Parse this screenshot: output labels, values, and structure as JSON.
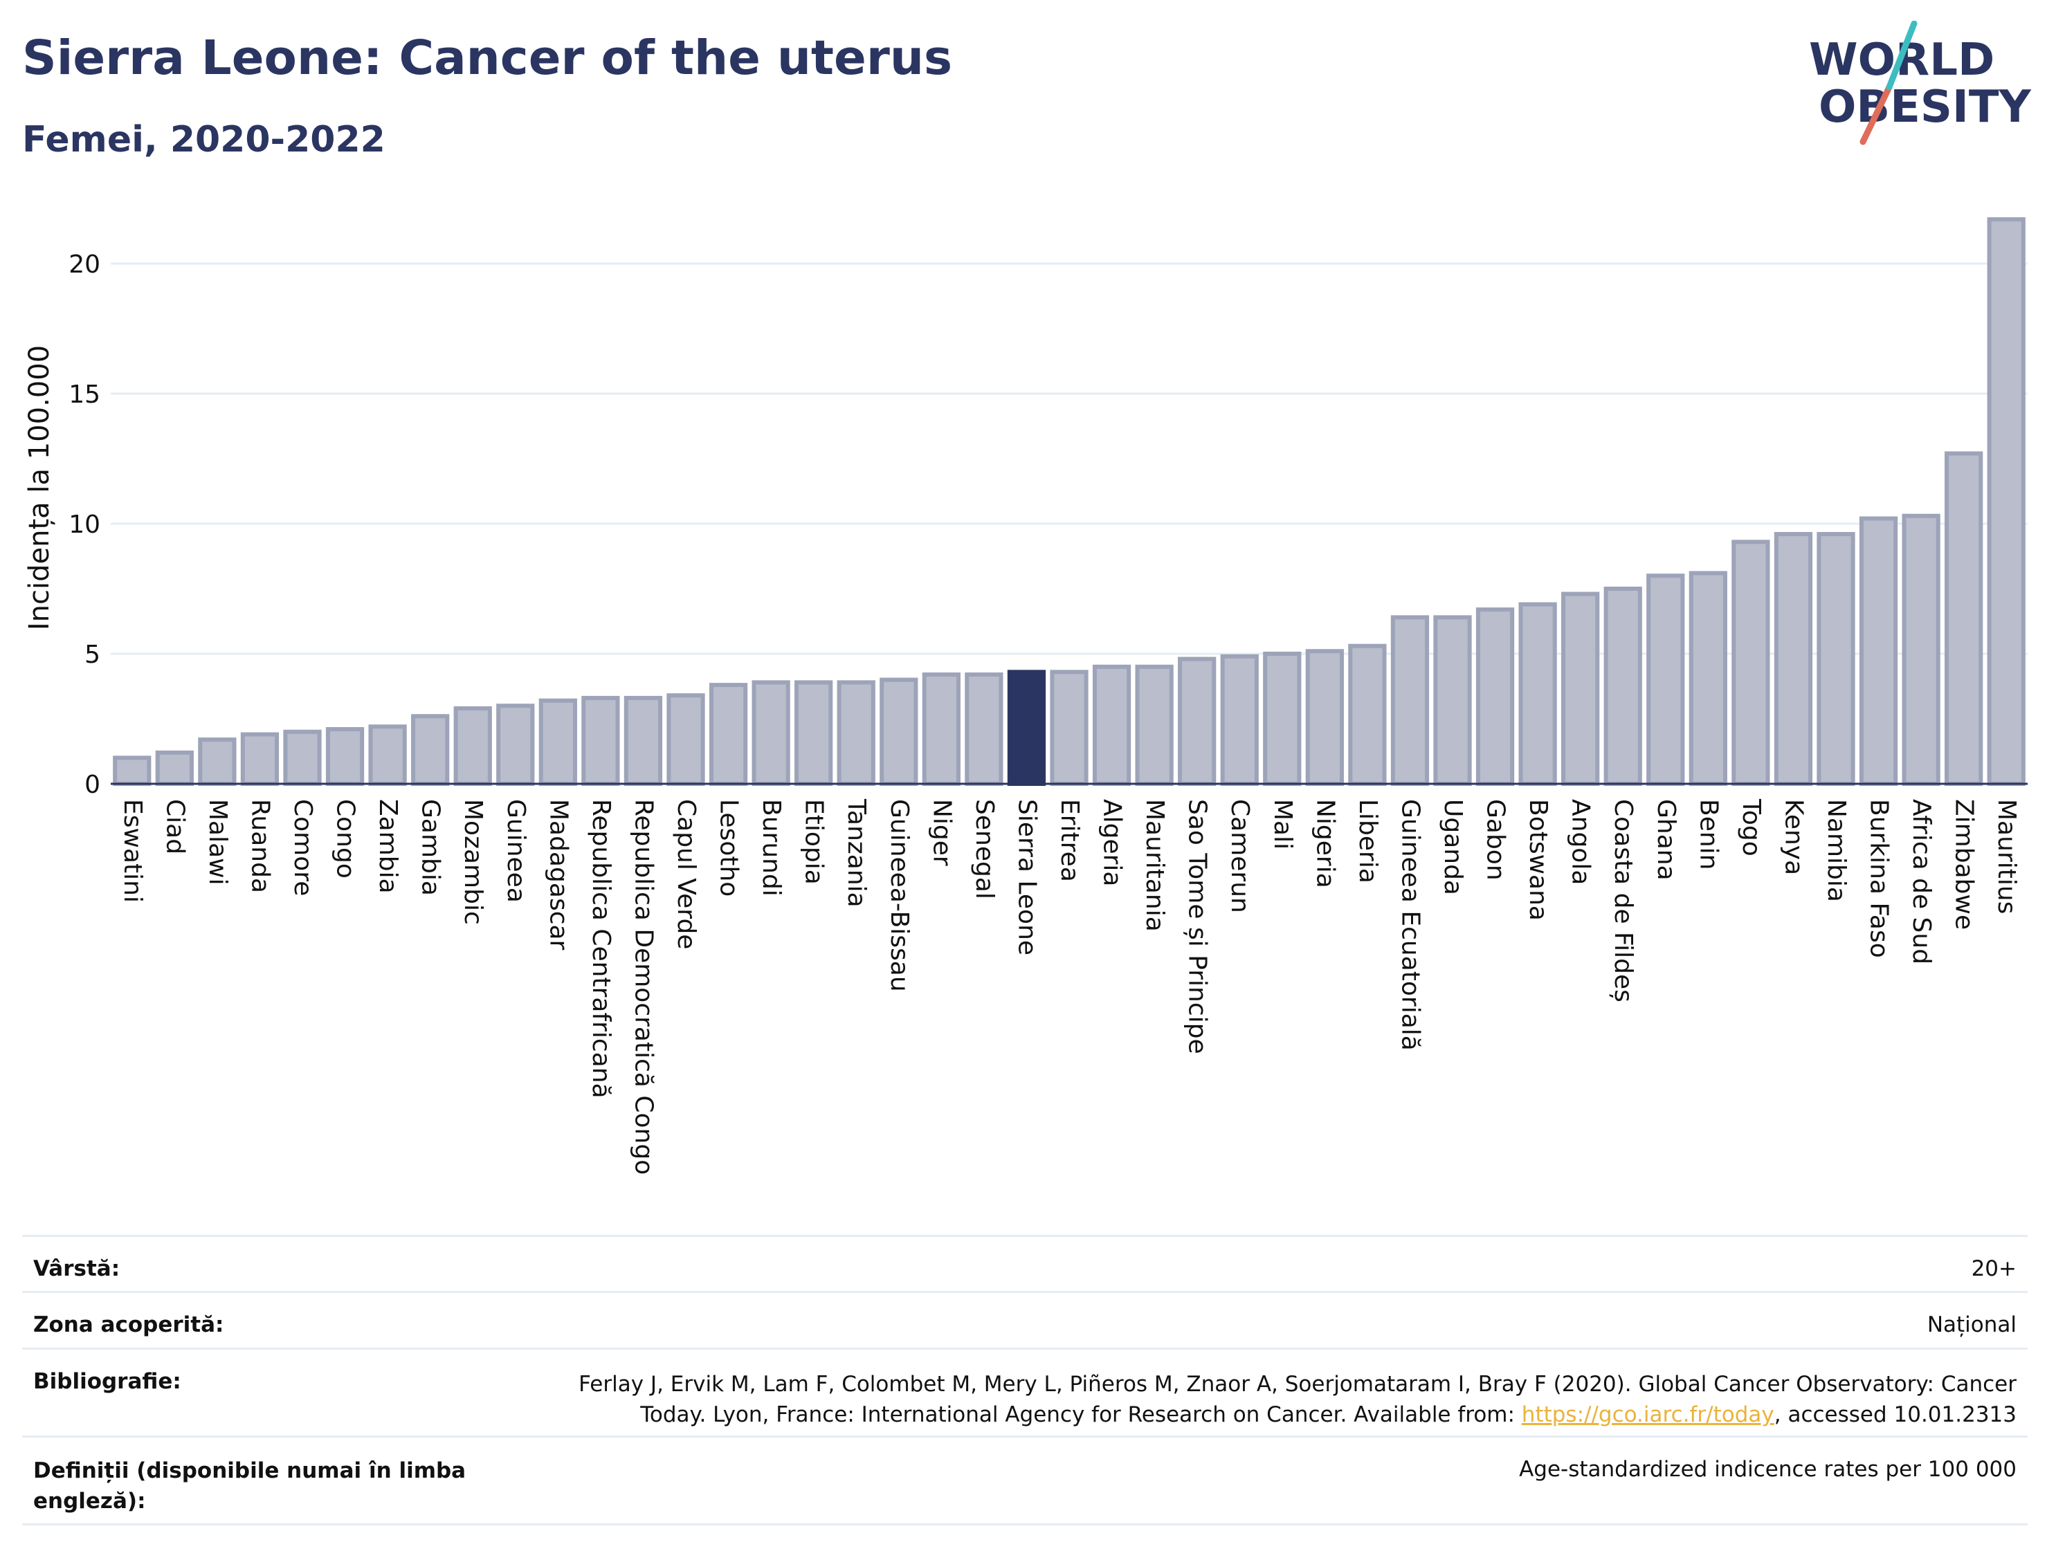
{
  "header": {
    "title": "Sierra Leone: Cancer of the uterus",
    "subtitle": "Femei, 2020-2022",
    "logo_line1": "WORLD",
    "logo_line2": "OBESITY"
  },
  "colors": {
    "highlight": "#2b3561",
    "bar": "#b9bdcc",
    "bar_stroke": "#9da3b8",
    "axis": "#2b3561",
    "logo_teal": "#3dbdc1",
    "logo_red": "#e06c5a"
  },
  "chart_data": {
    "type": "bar",
    "ylabel": "Incidența la 100.000",
    "ylim": [
      0,
      22
    ],
    "yticks": [
      0,
      5,
      10,
      15,
      20
    ],
    "grid": true,
    "highlight": "Sierra Leone",
    "categories": [
      "Eswatini",
      "Ciad",
      "Malawi",
      "Ruanda",
      "Comore",
      "Congo",
      "Zambia",
      "Gambia",
      "Mozambic",
      "Guineea",
      "Madagascar",
      "Republica Centrafricană",
      "Republica Democratică Congo",
      "Capul Verde",
      "Lesotho",
      "Burundi",
      "Etiopia",
      "Tanzania",
      "Guineea-Bissau",
      "Niger",
      "Senegal",
      "Sierra Leone",
      "Eritrea",
      "Algeria",
      "Mauritania",
      "Sao Tome și Principe",
      "Camerun",
      "Mali",
      "Nigeria",
      "Liberia",
      "Guineea Ecuatorială",
      "Uganda",
      "Gabon",
      "Botswana",
      "Angola",
      "Coasta de Fildeș",
      "Ghana",
      "Benin",
      "Togo",
      "Kenya",
      "Namibia",
      "Burkina Faso",
      "Africa de Sud",
      "Zimbabwe",
      "Mauritius"
    ],
    "values": [
      1.0,
      1.2,
      1.7,
      1.9,
      2.0,
      2.1,
      2.2,
      2.6,
      2.9,
      3.0,
      3.2,
      3.3,
      3.3,
      3.4,
      3.8,
      3.9,
      3.9,
      3.9,
      4.0,
      4.2,
      4.2,
      4.3,
      4.3,
      4.5,
      4.5,
      4.8,
      4.9,
      5.0,
      5.1,
      5.3,
      6.4,
      6.4,
      6.7,
      6.9,
      7.3,
      7.5,
      8.0,
      8.1,
      9.3,
      9.6,
      9.6,
      10.2,
      10.3,
      12.7,
      21.7
    ]
  },
  "meta": {
    "age_label": "Vârstă:",
    "age_value": "20+",
    "area_label": "Zona acoperită:",
    "area_value": "Național",
    "biblio_label": "Bibliografie:",
    "biblio_line1": "Ferlay J, Ervik M, Lam F, Colombet M, Mery L, Piñeros M, Znaor A, Soerjomataram I, Bray F (2020). Global Cancer Observatory: Cancer",
    "biblio_line2_pre": "Today. Lyon, France: International Agency for Research on Cancer. Available from: ",
    "biblio_link": "https://gco.iarc.fr/today",
    "biblio_line2_post": ", accessed 10.01.2313",
    "def_label_line1": "Definiții (disponibile numai în limba",
    "def_label_line2": "engleză):",
    "def_value": "Age-standardized indicence rates per 100 000"
  }
}
